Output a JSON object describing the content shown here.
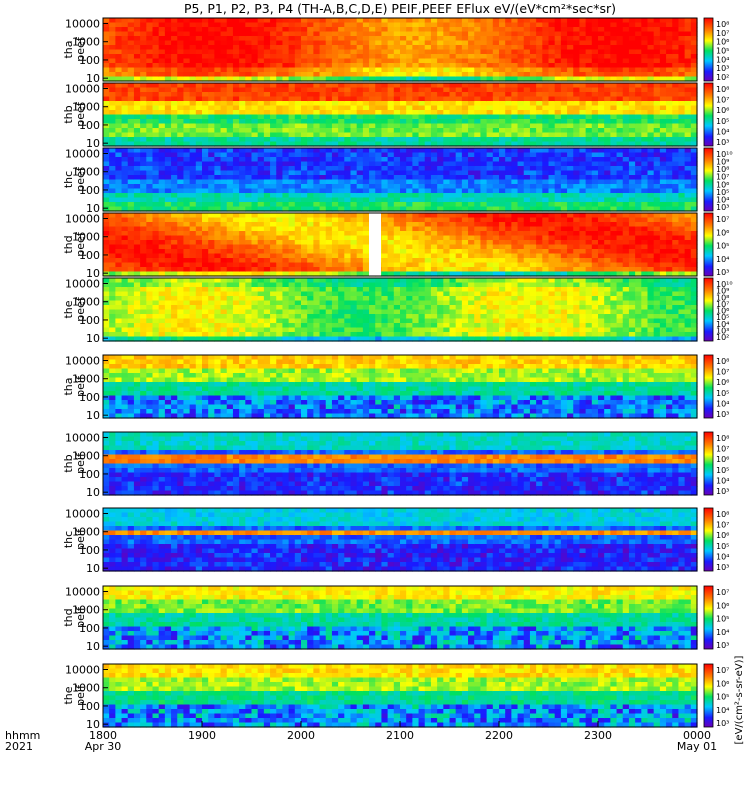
{
  "chart_data": {
    "type": "heatmap",
    "title": "P5, P1, P2, P3, P4 (TH-A,B,C,D,E) PEIF,PEEF EFlux eV/(eV*cm²*sec*sr)",
    "colorbar_label": "[eV/(cm²-s-sr-eV)]",
    "y_scale": "log",
    "ylim": [
      7,
      20000
    ],
    "y_ticks": [
      "10",
      "100",
      "1000",
      "10000"
    ],
    "x_row_labels": [
      "hhmm",
      "2021"
    ],
    "x_ticks": [
      {
        "label": "1800",
        "sub": "Apr 30"
      },
      {
        "label": "1900",
        "sub": ""
      },
      {
        "label": "2000",
        "sub": ""
      },
      {
        "label": "2100",
        "sub": ""
      },
      {
        "label": "2200",
        "sub": ""
      },
      {
        "label": "2300",
        "sub": ""
      },
      {
        "label": "0000",
        "sub": "May 01"
      }
    ],
    "xlim": [
      "2021-04-30 18:00",
      "2021-05-01 00:00"
    ],
    "grid": false,
    "panels": [
      {
        "probe": "tha",
        "quantity": "peef",
        "colorbar_ticks": [
          "10⁸",
          "10⁷",
          "10⁶",
          "10⁵",
          "10⁴",
          "10³",
          "10²"
        ]
      },
      {
        "probe": "thb",
        "quantity": "peef",
        "colorbar_ticks": [
          "10⁸",
          "10⁷",
          "10⁶",
          "10⁵",
          "10⁴",
          "10³"
        ]
      },
      {
        "probe": "thc",
        "quantity": "peef",
        "colorbar_ticks": [
          "10¹⁰",
          "10⁹",
          "10⁸",
          "10⁷",
          "10⁶",
          "10⁵",
          "10⁴",
          "10³"
        ]
      },
      {
        "probe": "thd",
        "quantity": "peef",
        "colorbar_ticks": [
          "10⁷",
          "10⁶",
          "10⁵",
          "10⁴",
          "10³"
        ]
      },
      {
        "probe": "the",
        "quantity": "peef",
        "colorbar_ticks": [
          "10¹⁰",
          "10⁹",
          "10⁸",
          "10⁷",
          "10⁶",
          "10⁵",
          "10⁴",
          "10³",
          "10²"
        ]
      },
      {
        "probe": "tha",
        "quantity": "peif",
        "colorbar_ticks": [
          "10⁸",
          "10⁷",
          "10⁶",
          "10⁵",
          "10⁴",
          "10³"
        ]
      },
      {
        "probe": "thb",
        "quantity": "peif",
        "colorbar_ticks": [
          "10⁸",
          "10⁷",
          "10⁶",
          "10⁵",
          "10⁴",
          "10³"
        ]
      },
      {
        "probe": "thc",
        "quantity": "peif",
        "colorbar_ticks": [
          "10⁸",
          "10⁷",
          "10⁶",
          "10⁵",
          "10⁴",
          "10³"
        ]
      },
      {
        "probe": "thd",
        "quantity": "peif",
        "colorbar_ticks": [
          "10⁷",
          "10⁶",
          "10⁵",
          "10⁴",
          "10³"
        ]
      },
      {
        "probe": "the",
        "quantity": "peif",
        "colorbar_ticks": [
          "10⁷",
          "10⁶",
          "10⁵",
          "10⁴",
          "10³"
        ]
      }
    ]
  }
}
